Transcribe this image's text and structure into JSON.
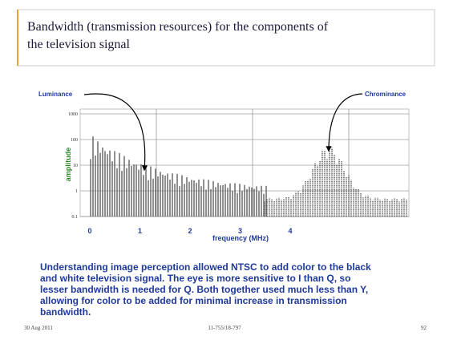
{
  "slide": {
    "title_lines": [
      "Bandwidth (transmission resources) for the components of",
      "the television signal"
    ],
    "figure": {
      "y_label": "amplitude",
      "x_label": "frequency (MHz)",
      "yticks": [
        1000,
        100,
        10,
        1,
        0.1
      ],
      "xticks": [
        0,
        1,
        2,
        3,
        4
      ],
      "annotations": [
        "Luminance",
        "Chrominance"
      ]
    },
    "body_lines": [
      "Understanding image perception allowed NTSC to add color to the black",
      "and white television signal. The eye is more sensitive to I than Q, so",
      "lesser bandwidth is needed for Q. Both together used much less than Y,",
      "allowing for color to be added for minimal increase in transmission",
      "bandwidth."
    ],
    "footer": {
      "date": "30 Aug 2011",
      "course": "11-755/18-797",
      "page": "92"
    }
  }
}
